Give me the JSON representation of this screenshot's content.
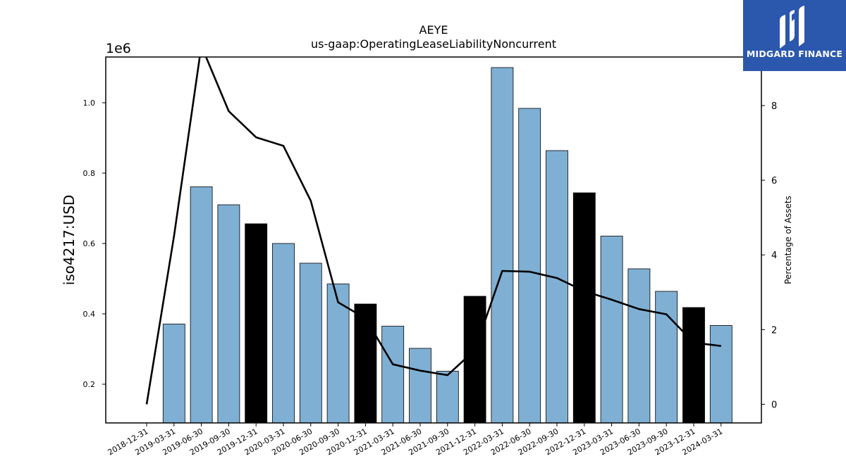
{
  "chart_data": {
    "type": "bar",
    "title": "AEYE",
    "subtitle": "us-gaap:OperatingLeaseLiabilityNoncurrent",
    "ylabel": "iso4217:USD",
    "y_multiplier_label": "1e6",
    "y2label": "Percentage of Assets",
    "categories": [
      "2018-12-31",
      "2019-03-31",
      "2019-06-30",
      "2019-09-30",
      "2019-12-31",
      "2020-03-31",
      "2020-06-30",
      "2020-09-30",
      "2020-12-31",
      "2021-03-31",
      "2021-06-30",
      "2021-09-30",
      "2021-12-31",
      "2022-03-31",
      "2022-06-30",
      "2022-09-30",
      "2022-12-31",
      "2023-03-31",
      "2023-06-30",
      "2023-09-30",
      "2023-12-31",
      "2024-03-31"
    ],
    "series": [
      {
        "type": "bar",
        "axis": "left",
        "values": [
          null,
          371000,
          761000,
          710000,
          656000,
          600000,
          544000,
          485000,
          428000,
          365000,
          302000,
          237000,
          450000,
          1100000,
          984000,
          864000,
          744000,
          621000,
          528000,
          464000,
          418000,
          367000
        ],
        "colors": [
          "#7fb0d4",
          "#7fb0d4",
          "#7fb0d4",
          "#7fb0d4",
          "#000000",
          "#7fb0d4",
          "#7fb0d4",
          "#7fb0d4",
          "#000000",
          "#7fb0d4",
          "#7fb0d4",
          "#7fb0d4",
          "#000000",
          "#7fb0d4",
          "#7fb0d4",
          "#7fb0d4",
          "#000000",
          "#7fb0d4",
          "#7fb0d4",
          "#7fb0d4",
          "#000000",
          "#7fb0d4"
        ]
      },
      {
        "type": "line",
        "axis": "right",
        "color": "#000000",
        "values": [
          0.0,
          4.5,
          9.6,
          7.85,
          7.15,
          6.92,
          5.45,
          2.73,
          2.3,
          1.07,
          0.9,
          0.78,
          1.45,
          3.57,
          3.55,
          3.38,
          3.03,
          2.8,
          2.55,
          2.41,
          1.65,
          1.56
        ]
      }
    ],
    "ylim": [
      90000,
      1130000
    ],
    "y_ticks": [
      0.2,
      0.4,
      0.6,
      0.8,
      1.0
    ],
    "y2lim": [
      -0.5,
      9.3
    ],
    "y2_ticks": [
      0,
      2,
      4,
      6,
      8
    ],
    "grid": false,
    "bar_colors": {
      "default": "#7fb0d4",
      "highlight": "#000000"
    }
  },
  "logo": {
    "text": "MIDGARD FINANCE",
    "background": "#2b58ad"
  }
}
